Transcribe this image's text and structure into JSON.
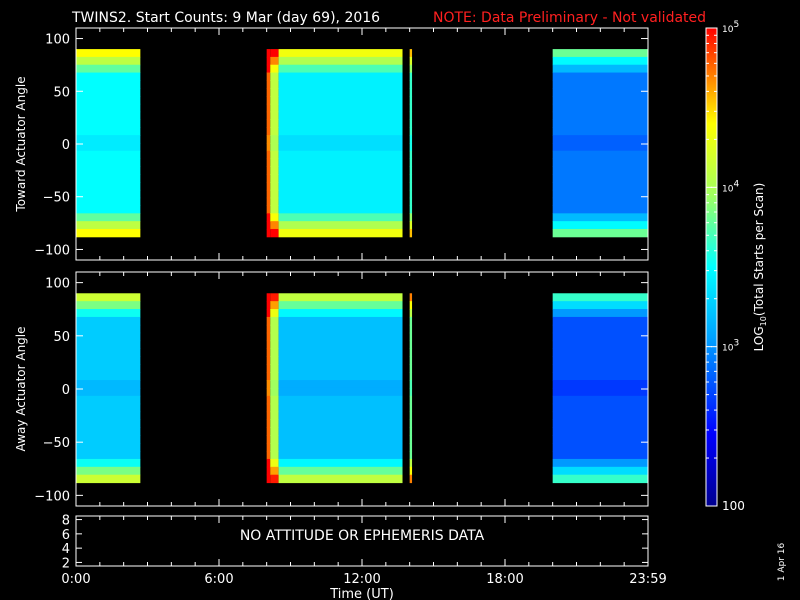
{
  "title": {
    "main": "TWINS2. Start Counts:  9 Mar (day  69), 2016",
    "note": "NOTE: Data Preliminary - Not validated",
    "note_color": "#ff2020"
  },
  "footer_date": "1 Apr 16",
  "colorbar": {
    "label": "LOG10(Total Starts per Scan)",
    "ticks": [
      {
        "value": 100,
        "label": "100"
      },
      {
        "value": 1000,
        "label": "10^3"
      },
      {
        "value": 10000,
        "label": "10^4"
      },
      {
        "value": 100000,
        "label": "10^5"
      }
    ],
    "range": [
      100,
      100000
    ],
    "scale": "log",
    "colormap": "rainbow"
  },
  "chart_data": [
    {
      "type": "heatmap",
      "name": "toward",
      "ylabel": "Toward Actuator Angle",
      "ylim": [
        -110,
        110
      ],
      "xlim": [
        0,
        24
      ],
      "yticks": [
        -100,
        -50,
        0,
        50,
        100
      ],
      "xticks_hours": [
        0,
        6,
        12,
        18,
        24
      ],
      "angle_range": [
        -88,
        90
      ],
      "segments": [
        {
          "start": 0.0,
          "end": 2.7,
          "level": 0.5
        },
        {
          "start": 8.0,
          "end": 8.15,
          "level": 0.92
        },
        {
          "start": 8.15,
          "end": 8.5,
          "level": 0.7
        },
        {
          "start": 8.5,
          "end": 13.7,
          "level": 0.48
        },
        {
          "start": 14.0,
          "end": 14.1,
          "level": 0.55
        },
        {
          "start": 20.0,
          "end": 24.0,
          "level": 0.3
        }
      ]
    },
    {
      "type": "heatmap",
      "name": "away",
      "ylabel": "Away Actuator Angle",
      "ylim": [
        -110,
        110
      ],
      "xlim": [
        0,
        24
      ],
      "yticks": [
        -100,
        -50,
        0,
        50,
        100
      ],
      "xticks_hours": [
        0,
        6,
        12,
        18,
        24
      ],
      "angle_range": [
        -88,
        90
      ],
      "segments": [
        {
          "start": 0.0,
          "end": 2.7,
          "level": 0.42
        },
        {
          "start": 8.0,
          "end": 8.15,
          "level": 0.92
        },
        {
          "start": 8.15,
          "end": 8.5,
          "level": 0.68
        },
        {
          "start": 8.5,
          "end": 13.7,
          "level": 0.4
        },
        {
          "start": 14.0,
          "end": 14.1,
          "level": 0.6
        },
        {
          "start": 20.0,
          "end": 24.0,
          "level": 0.25
        }
      ]
    },
    {
      "type": "line",
      "name": "ephemeris",
      "ylim": [
        1.5,
        8.5
      ],
      "yticks": [
        2,
        4,
        6,
        8
      ],
      "xlim": [
        0,
        24
      ],
      "message": "NO ATTITUDE OR EPHEMERIS DATA"
    }
  ],
  "x_axis": {
    "tick_labels": [
      "0:00",
      "6:00",
      "12:00",
      "18:00",
      "23:59"
    ],
    "label": "Time (UT)"
  }
}
